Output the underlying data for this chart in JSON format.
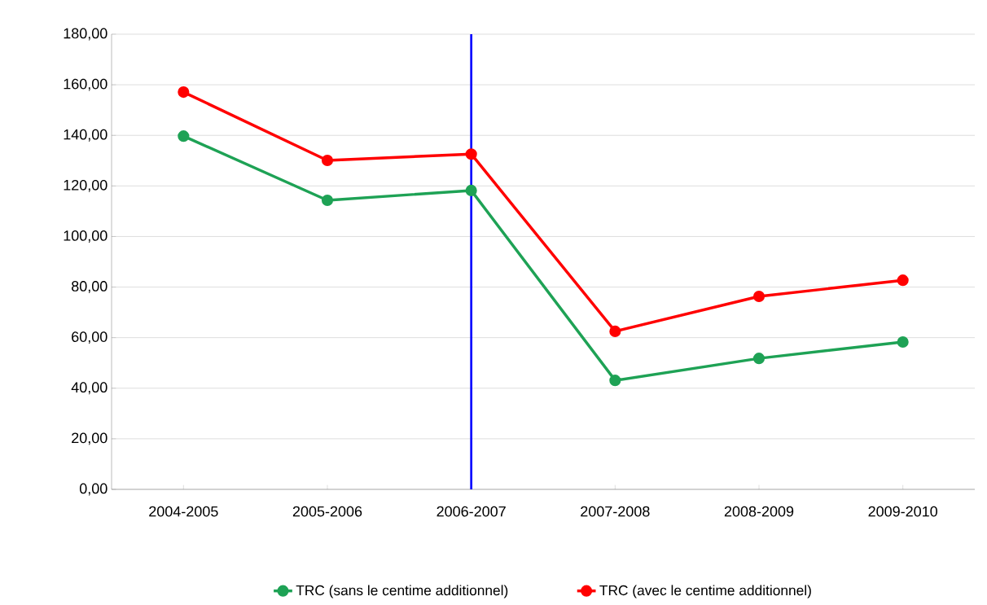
{
  "chart_data": {
    "type": "line",
    "categories": [
      "2004-2005",
      "2005-2006",
      "2006-2007",
      "2007-2008",
      "2008-2009",
      "2009-2010"
    ],
    "series": [
      {
        "name": "TRC (sans le centime additionnel)",
        "color": "#1ea255",
        "values": [
          139.7,
          114.3,
          118.2,
          43.1,
          51.8,
          58.3
        ]
      },
      {
        "name": "TRC (avec le centime additionnel)",
        "color": "#ff0000",
        "values": [
          157.1,
          130.1,
          132.6,
          62.5,
          76.3,
          82.7
        ]
      }
    ],
    "ylim": [
      0,
      180
    ],
    "yticks": [
      {
        "value": 0,
        "label": "0,00"
      },
      {
        "value": 20,
        "label": "20,00"
      },
      {
        "value": 40,
        "label": "40,00"
      },
      {
        "value": 60,
        "label": "60,00"
      },
      {
        "value": 80,
        "label": "80,00"
      },
      {
        "value": 100,
        "label": "100,00"
      },
      {
        "value": 120,
        "label": "120,00"
      },
      {
        "value": 140,
        "label": "140,00"
      },
      {
        "value": 160,
        "label": "160,00"
      },
      {
        "value": 180,
        "label": "180,00"
      }
    ],
    "ref_lines": [
      {
        "axis": "x",
        "value": "2006-2007",
        "color": "#0000ff"
      }
    ],
    "grid": "y",
    "legend": "bottom",
    "marker": "circle",
    "line_style": "solid"
  }
}
